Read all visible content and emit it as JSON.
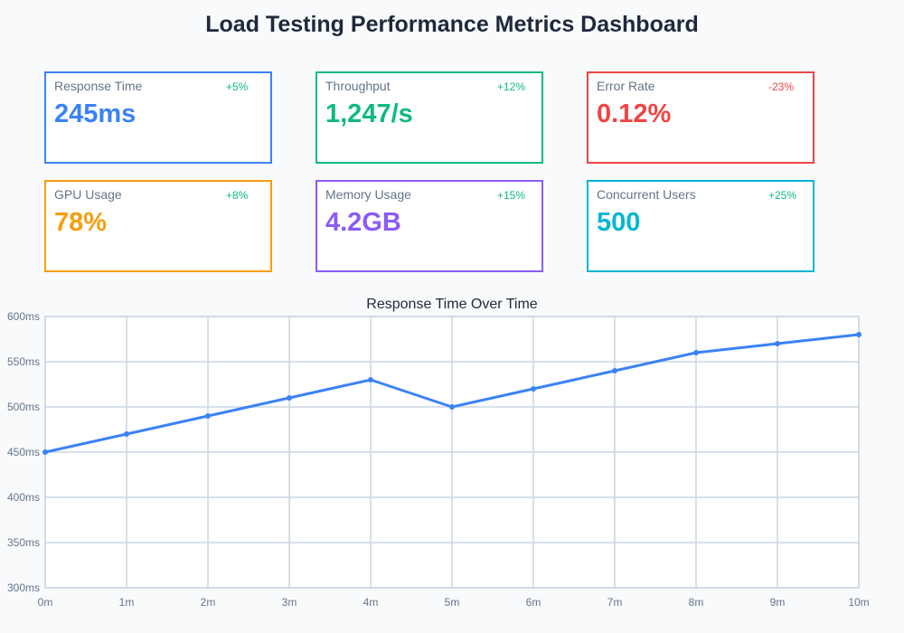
{
  "title": "Load Testing Performance Metrics Dashboard",
  "cards": [
    {
      "label": "Response Time",
      "value": "245ms",
      "change": "+5%",
      "color": "#3b82f6",
      "change_color": "#10b981"
    },
    {
      "label": "Throughput",
      "value": "1,247/s",
      "change": "+12%",
      "color": "#10b981",
      "change_color": "#10b981"
    },
    {
      "label": "Error Rate",
      "value": "0.12%",
      "change": "-23%",
      "color": "#ef4444",
      "change_color": "#ef4444"
    },
    {
      "label": "GPU Usage",
      "value": "78%",
      "change": "+8%",
      "color": "#f59e0b",
      "change_color": "#10b981"
    },
    {
      "label": "Memory Usage",
      "value": "4.2GB",
      "change": "+15%",
      "color": "#8b5cf6",
      "change_color": "#10b981"
    },
    {
      "label": "Concurrent Users",
      "value": "500",
      "change": "+25%",
      "color": "#06b6d4",
      "change_color": "#10b981"
    }
  ],
  "chart_data": {
    "type": "line",
    "title": "Response Time Over Time",
    "x": [
      "0m",
      "1m",
      "2m",
      "3m",
      "4m",
      "5m",
      "6m",
      "7m",
      "8m",
      "9m",
      "10m"
    ],
    "series": [
      {
        "name": "Response Time",
        "values": [
          450,
          470,
          490,
          510,
          530,
          500,
          520,
          540,
          560,
          570,
          580
        ],
        "color": "#3b82f6"
      }
    ],
    "yticks": [
      "300ms",
      "350ms",
      "400ms",
      "450ms",
      "500ms",
      "550ms",
      "600ms"
    ],
    "ylim": [
      300,
      600
    ],
    "grid": true
  }
}
